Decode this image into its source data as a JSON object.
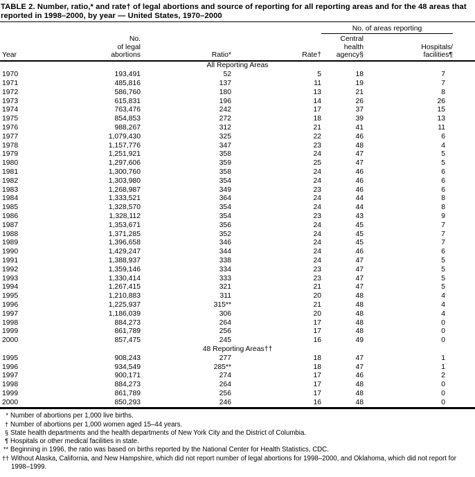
{
  "colors": {
    "background": "#ffffff",
    "text": "#000000",
    "rules": "#000000"
  },
  "title": "TABLE 2. Number, ratio,* and rate† of legal abortions and source of reporting for all reporting areas and for the 48 areas that reported in 1998–2000, by year — United States, 1970–2000",
  "table": {
    "group_header": "No. of areas reporting",
    "columns": [
      "Year",
      "No.\nof legal\nabortions",
      "Ratio*",
      "Rate†",
      "Central\nhealth\nagency§",
      "Hospitals/\nfacilities¶"
    ],
    "sections": [
      {
        "label": "All Reporting Areas",
        "rows": [
          [
            "1970",
            "193,491",
            "52",
            "5",
            "18",
            "7"
          ],
          [
            "1971",
            "485,816",
            "137",
            "11",
            "19",
            "7"
          ],
          [
            "1972",
            "586,760",
            "180",
            "13",
            "21",
            "8"
          ],
          [
            "1973",
            "615,831",
            "196",
            "14",
            "26",
            "26"
          ],
          [
            "1974",
            "763,476",
            "242",
            "17",
            "37",
            "15"
          ],
          [
            "1975",
            "854,853",
            "272",
            "18",
            "39",
            "13"
          ],
          [
            "1976",
            "988,267",
            "312",
            "21",
            "41",
            "11"
          ],
          [
            "1977",
            "1,079,430",
            "325",
            "22",
            "46",
            "6"
          ],
          [
            "1978",
            "1,157,776",
            "347",
            "23",
            "48",
            "4"
          ],
          [
            "1979",
            "1,251,921",
            "358",
            "24",
            "47",
            "5"
          ],
          [
            "1980",
            "1,297,606",
            "359",
            "25",
            "47",
            "5"
          ],
          [
            "1981",
            "1,300,760",
            "358",
            "24",
            "46",
            "6"
          ],
          [
            "1982",
            "1,303,980",
            "354",
            "24",
            "46",
            "6"
          ],
          [
            "1983",
            "1,268,987",
            "349",
            "23",
            "46",
            "6"
          ],
          [
            "1984",
            "1,333,521",
            "364",
            "24",
            "44",
            "8"
          ],
          [
            "1985",
            "1,328,570",
            "354",
            "24",
            "44",
            "8"
          ],
          [
            "1986",
            "1,328,112",
            "354",
            "23",
            "43",
            "9"
          ],
          [
            "1987",
            "1,353,671",
            "356",
            "24",
            "45",
            "7"
          ],
          [
            "1988",
            "1,371,285",
            "352",
            "24",
            "45",
            "7"
          ],
          [
            "1989",
            "1,396,658",
            "346",
            "24",
            "45",
            "7"
          ],
          [
            "1990",
            "1,429,247",
            "344",
            "24",
            "46",
            "6"
          ],
          [
            "1991",
            "1,388,937",
            "338",
            "24",
            "47",
            "5"
          ],
          [
            "1992",
            "1,359,146",
            "334",
            "23",
            "47",
            "5"
          ],
          [
            "1993",
            "1,330,414",
            "333",
            "23",
            "47",
            "5"
          ],
          [
            "1994",
            "1,267,415",
            "321",
            "21",
            "47",
            "5"
          ],
          [
            "1995",
            "1,210,883",
            "311",
            "20",
            "48",
            "4"
          ],
          [
            "1996",
            "1,225,937",
            "315**",
            "21",
            "48",
            "4"
          ],
          [
            "1997",
            "1,186,039",
            "306",
            "20",
            "48",
            "4"
          ],
          [
            "1998",
            "884,273",
            "264",
            "17",
            "48",
            "0"
          ],
          [
            "1999",
            "861,789",
            "256",
            "17",
            "48",
            "0"
          ],
          [
            "2000",
            "857,475",
            "245",
            "16",
            "49",
            "0"
          ]
        ]
      },
      {
        "label": "48 Reporting Areas††",
        "rows": [
          [
            "1995",
            "908,243",
            "277",
            "18",
            "47",
            "1"
          ],
          [
            "1996",
            "934,549",
            "285**",
            "18",
            "47",
            "1"
          ],
          [
            "1997",
            "900,171",
            "274",
            "17",
            "46",
            "2"
          ],
          [
            "1998",
            "884,273",
            "264",
            "17",
            "48",
            "0"
          ],
          [
            "1999",
            "861,789",
            "256",
            "17",
            "48",
            "0"
          ],
          [
            "2000",
            "850,293",
            "246",
            "16",
            "48",
            "0"
          ]
        ]
      }
    ]
  },
  "footnotes": [
    {
      "marker": "*",
      "text": "Number of abortions per 1,000 live births."
    },
    {
      "marker": "†",
      "text": "Number of abortions per 1,000 women aged 15–44 years."
    },
    {
      "marker": "§",
      "text": "State health departments and the health departments of New York City and the District of Columbia."
    },
    {
      "marker": "¶",
      "text": "Hospitals or other medical facilities in state."
    },
    {
      "marker": "**",
      "text": "Beginning in 1996, the ratio was based on births reported by the National Center for Health Statistics, CDC."
    },
    {
      "marker": "††",
      "text": "Without Alaska, California, and New Hampshire, which did not report number of legal abortions for 1998–2000, and Oklahoma, which did not report for 1998–1999."
    }
  ]
}
